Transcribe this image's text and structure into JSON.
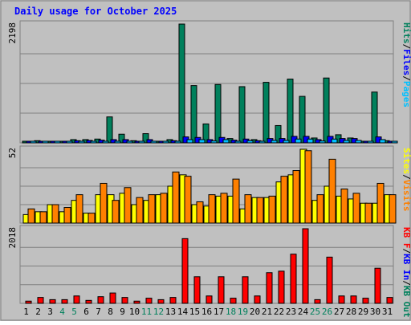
{
  "chart_data": [
    {
      "type": "bar",
      "panel": "hits-files-pages",
      "title": "Daily usage for October 2025",
      "ymax_label": "2198",
      "legend": [
        "Pages",
        "Files",
        "Hits"
      ],
      "categories": [
        "1",
        "2",
        "3",
        "4",
        "5",
        "6",
        "7",
        "8",
        "9",
        "10",
        "11",
        "12",
        "13",
        "14",
        "15",
        "16",
        "17",
        "18",
        "19",
        "20",
        "21",
        "22",
        "23",
        "24",
        "25",
        "26",
        "27",
        "28",
        "29",
        "30",
        "31"
      ],
      "series": [
        {
          "name": "Hits",
          "values": [
            18,
            40,
            24,
            22,
            60,
            60,
            70,
            480,
            160,
            40,
            170,
            30,
            60,
            2198,
            1060,
            350,
            1080,
            80,
            1040,
            60,
            1120,
            320,
            1180,
            860,
            90,
            1200,
            150,
            90,
            30,
            940,
            40
          ]
        },
        {
          "name": "Files",
          "values": [
            10,
            25,
            18,
            16,
            40,
            45,
            50,
            60,
            60,
            25,
            60,
            20,
            40,
            110,
            100,
            60,
            100,
            50,
            70,
            40,
            80,
            80,
            120,
            120,
            60,
            120,
            80,
            80,
            20,
            110,
            30
          ]
        },
        {
          "name": "Pages",
          "values": [
            6,
            15,
            12,
            10,
            20,
            25,
            28,
            30,
            30,
            15,
            30,
            12,
            20,
            60,
            60,
            35,
            60,
            28,
            40,
            25,
            45,
            45,
            70,
            70,
            35,
            70,
            45,
            45,
            12,
            60,
            18
          ]
        }
      ],
      "ylim": [
        0,
        2198
      ]
    },
    {
      "type": "bar",
      "panel": "visits-sites",
      "ymax_label": "52",
      "legend": [
        "Visits",
        "Sites"
      ],
      "categories": [
        "1",
        "2",
        "3",
        "4",
        "5",
        "6",
        "7",
        "8",
        "9",
        "10",
        "11",
        "12",
        "13",
        "14",
        "15",
        "16",
        "17",
        "18",
        "19",
        "20",
        "21",
        "22",
        "23",
        "24",
        "25",
        "26",
        "27",
        "28",
        "29",
        "30",
        "31"
      ],
      "series": [
        {
          "name": "Visits",
          "values": [
            6,
            8,
            13,
            8,
            16,
            7,
            20,
            20,
            21,
            13,
            16,
            20,
            26,
            34,
            13,
            12,
            19,
            19,
            10,
            18,
            18,
            29,
            34,
            52,
            16,
            26,
            19,
            17,
            14,
            14,
            20
          ]
        },
        {
          "name": "Sites",
          "values": [
            10,
            8,
            13,
            11,
            20,
            7,
            28,
            16,
            25,
            18,
            20,
            21,
            36,
            33,
            15,
            20,
            21,
            31,
            20,
            18,
            19,
            33,
            37,
            51,
            20,
            45,
            24,
            21,
            14,
            28,
            20
          ]
        }
      ],
      "ylim": [
        0,
        52
      ]
    },
    {
      "type": "bar",
      "panel": "kbytes",
      "ymax_label": "2018",
      "legend": [
        "KB F",
        "KB In",
        "KB Out"
      ],
      "categories": [
        "1",
        "2",
        "3",
        "4",
        "5",
        "6",
        "7",
        "8",
        "9",
        "10",
        "11",
        "12",
        "13",
        "14",
        "15",
        "16",
        "17",
        "18",
        "19",
        "20",
        "21",
        "22",
        "23",
        "24",
        "25",
        "26",
        "27",
        "28",
        "29",
        "30",
        "31"
      ],
      "highlight_days": [
        "4",
        "5",
        "11",
        "12",
        "18",
        "19",
        "25",
        "26"
      ],
      "series": [
        {
          "name": "KB F",
          "values": [
            60,
            160,
            100,
            100,
            200,
            80,
            180,
            280,
            160,
            60,
            140,
            100,
            160,
            1750,
            720,
            200,
            720,
            140,
            720,
            200,
            830,
            870,
            1330,
            2018,
            100,
            1250,
            200,
            200,
            140,
            950,
            160
          ]
        }
      ],
      "ylim": [
        0,
        2018
      ]
    }
  ],
  "colors": {
    "background": "#c0c0c0",
    "border": "#808080",
    "title": "#0000ff",
    "hits": "#00805c",
    "files": "#0000ff",
    "pages": "#00c0ff",
    "visits": "#ffff00",
    "sites": "#ff8000",
    "kbytes": "#ff0000",
    "weekday_label": "#000000",
    "weekend_label": "#00805c"
  }
}
